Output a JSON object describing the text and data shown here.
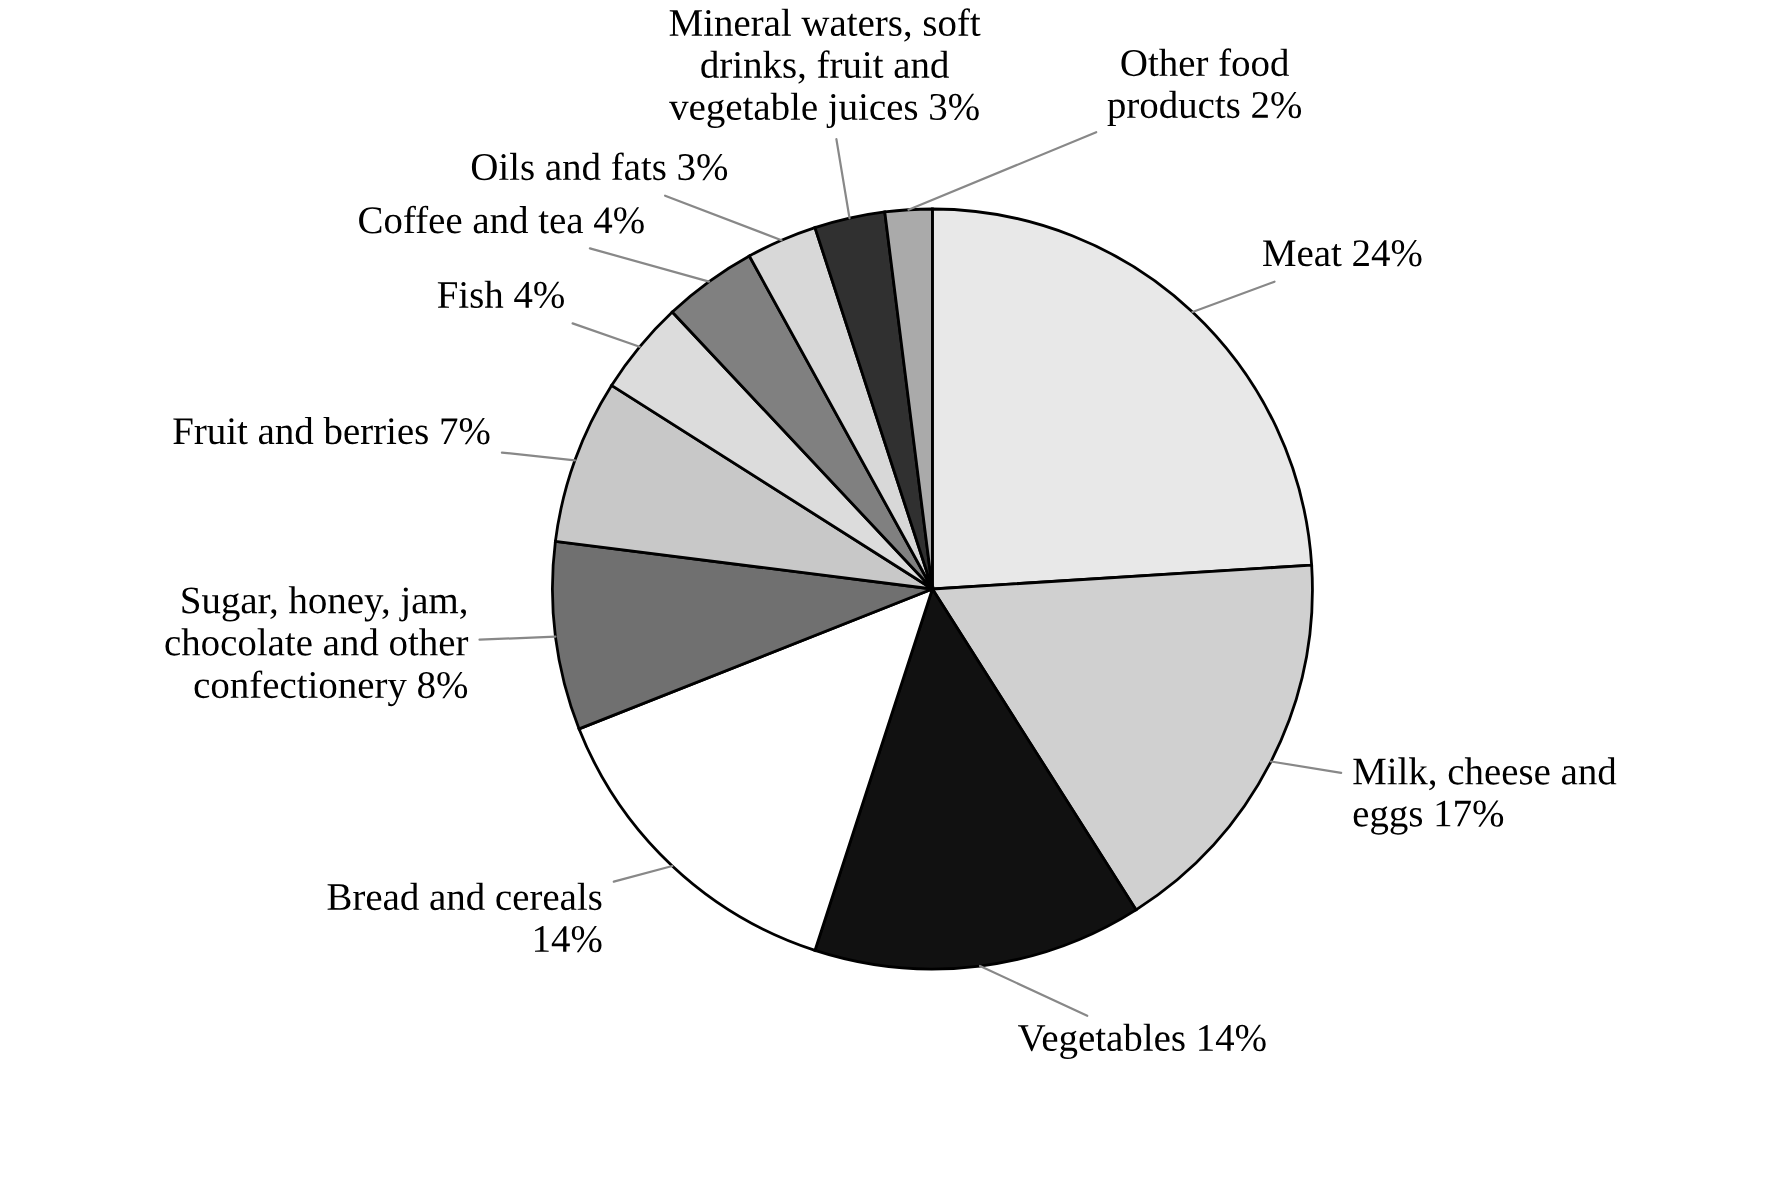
{
  "chart_data": {
    "type": "pie",
    "categories": [
      "Meat 24%",
      "Milk, cheese and\neggs 17%",
      "Vegetables 14%",
      "Bread and cereals\n14%",
      "Sugar, honey, jam,\nchocolate and other\nconfectionery 8%",
      "Fruit and berries 7%",
      "Fish 4%",
      "Coffee and tea 4%",
      "Oils and fats 3%",
      "Mineral waters, soft\ndrinks, fruit and\nvegetable juices 3%",
      "Other food\nproducts 2%"
    ],
    "values": [
      24,
      17,
      14,
      14,
      8,
      7,
      4,
      4,
      3,
      3,
      2
    ],
    "colors": [
      "#e8e8e8",
      "#d0d0d0",
      "#111111",
      "#ffffff",
      "#707070",
      "#c8c8c8",
      "#dcdcdc",
      "#808080",
      "#d8d8d8",
      "#303030",
      "#aaaaaa"
    ],
    "legend": false
  }
}
